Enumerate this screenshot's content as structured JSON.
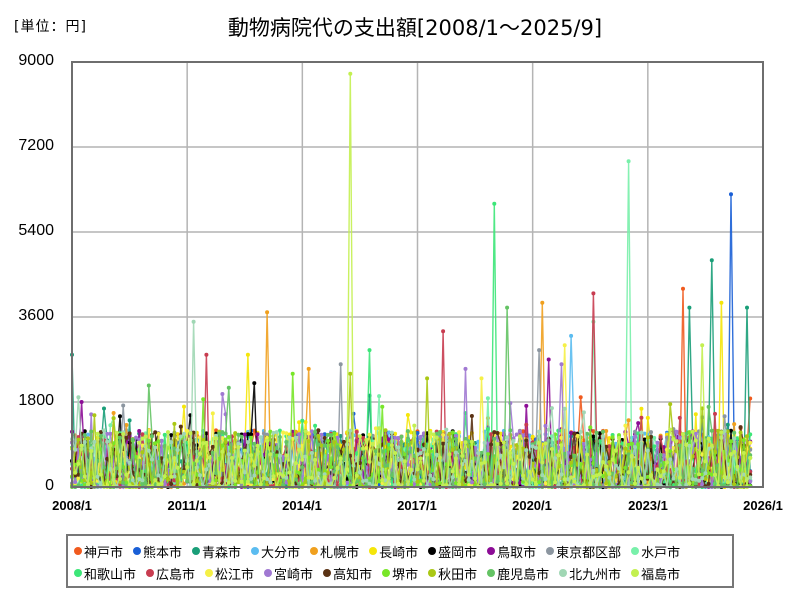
{
  "header": {
    "unit_label": "[単位：円]",
    "title": "動物病院代の支出額[2008/1～2025/9]"
  },
  "chart_data": {
    "type": "line",
    "title": "動物病院代の支出額[2008/1～2025/9]",
    "unit": "円",
    "xlabel": "",
    "ylabel": "",
    "x_range": [
      "2008/1",
      "2026/1"
    ],
    "data_range": [
      "2008/1",
      "2025/9"
    ],
    "ylim": [
      0,
      9000
    ],
    "y_ticks": [
      0,
      1800,
      3600,
      5400,
      7200,
      9000
    ],
    "x_ticks": [
      "2008/1",
      "2011/1",
      "2014/1",
      "2017/1",
      "2020/1",
      "2023/1",
      "2026/1"
    ],
    "grid": true,
    "legend_position": "bottom",
    "series": [
      {
        "name": "神戸市",
        "color": "#f05a1e",
        "peaks": [
          {
            "x": "2023/12",
            "y": 4200
          },
          {
            "x": "2021/4",
            "y": 1900
          }
        ]
      },
      {
        "name": "熊本市",
        "color": "#1a5fd6",
        "peaks": [
          {
            "x": "2025/3",
            "y": 6200
          },
          {
            "x": "2015/5",
            "y": 1550
          }
        ]
      },
      {
        "name": "青森市",
        "color": "#1a9e78",
        "peaks": [
          {
            "x": "2024/9",
            "y": 4800
          },
          {
            "x": "2008/1",
            "y": 2800
          },
          {
            "x": "2025/8",
            "y": 3800
          },
          {
            "x": "2024/2",
            "y": 3800
          }
        ]
      },
      {
        "name": "大分市",
        "color": "#5bbcf0",
        "peaks": [
          {
            "x": "2021/1",
            "y": 3200
          }
        ]
      },
      {
        "name": "札幌市",
        "color": "#f0a01e",
        "peaks": [
          {
            "x": "2020/4",
            "y": 3900
          },
          {
            "x": "2013/2",
            "y": 3700
          },
          {
            "x": "2014/3",
            "y": 2500
          }
        ]
      },
      {
        "name": "長崎市",
        "color": "#f5e60a",
        "peaks": [
          {
            "x": "2024/12",
            "y": 3900
          },
          {
            "x": "2012/8",
            "y": 2800
          }
        ]
      },
      {
        "name": "盛岡市",
        "color": "#000000",
        "peaks": [
          {
            "x": "2012/10",
            "y": 2200
          },
          {
            "x": "2009/4",
            "y": 1500
          }
        ]
      },
      {
        "name": "鳥取市",
        "color": "#8c0c96",
        "peaks": [
          {
            "x": "2008/4",
            "y": 1800
          },
          {
            "x": "2020/6",
            "y": 2700
          }
        ]
      },
      {
        "name": "東京都区部",
        "color": "#8c96a0",
        "peaks": [
          {
            "x": "2015/1",
            "y": 2600
          },
          {
            "x": "2020/3",
            "y": 2900
          }
        ]
      },
      {
        "name": "水戸市",
        "color": "#78f0aa",
        "peaks": [
          {
            "x": "2022/7",
            "y": 6900
          },
          {
            "x": "2021/8",
            "y": 3500
          }
        ]
      },
      {
        "name": "和歌山市",
        "color": "#3ce678",
        "peaks": [
          {
            "x": "2019/1",
            "y": 6000
          },
          {
            "x": "2015/10",
            "y": 2900
          }
        ]
      },
      {
        "name": "広島市",
        "color": "#c83c50",
        "peaks": [
          {
            "x": "2021/8",
            "y": 4100
          },
          {
            "x": "2017/9",
            "y": 3300
          },
          {
            "x": "2011/7",
            "y": 2800
          }
        ]
      },
      {
        "name": "松江市",
        "color": "#f5f046",
        "peaks": [
          {
            "x": "2020/11",
            "y": 3000
          },
          {
            "x": "2018/9",
            "y": 2300
          }
        ]
      },
      {
        "name": "宮崎市",
        "color": "#a078d2",
        "peaks": [
          {
            "x": "2018/4",
            "y": 2500
          },
          {
            "x": "2020/10",
            "y": 2600
          }
        ]
      },
      {
        "name": "高知市",
        "color": "#5a3214",
        "peaks": [
          {
            "x": "2014/6",
            "y": 1200
          }
        ]
      },
      {
        "name": "堺市",
        "color": "#78e628",
        "peaks": [
          {
            "x": "2016/2",
            "y": 1700
          },
          {
            "x": "2013/10",
            "y": 2400
          }
        ]
      },
      {
        "name": "秋田市",
        "color": "#aac814",
        "peaks": [
          {
            "x": "2015/4",
            "y": 2400
          },
          {
            "x": "2017/4",
            "y": 2300
          }
        ]
      },
      {
        "name": "鹿児島市",
        "color": "#64c364",
        "peaks": [
          {
            "x": "2019/5",
            "y": 3800
          },
          {
            "x": "2012/2",
            "y": 2100
          },
          {
            "x": "2010/1",
            "y": 2150
          }
        ]
      },
      {
        "name": "北九州市",
        "color": "#a0d7b4",
        "peaks": [
          {
            "x": "2011/3",
            "y": 3500
          },
          {
            "x": "2008/3",
            "y": 1900
          }
        ]
      },
      {
        "name": "福島市",
        "color": "#c3f050",
        "peaks": [
          {
            "x": "2015/4",
            "y": 8750
          },
          {
            "x": "2024/6",
            "y": 3000
          }
        ]
      }
    ],
    "typical_range": [
      0,
      1200
    ]
  },
  "legend": {
    "row1": [
      "神戸市",
      "熊本市",
      "青森市",
      "大分市",
      "札幌市",
      "長崎市",
      "盛岡市",
      "鳥取市",
      "東京都区部",
      "水戸市"
    ],
    "row2": [
      "和歌山市",
      "広島市",
      "松江市",
      "宮崎市",
      "高知市",
      "堺市",
      "秋田市",
      "鹿児島市",
      "北九州市",
      "福島市"
    ]
  }
}
